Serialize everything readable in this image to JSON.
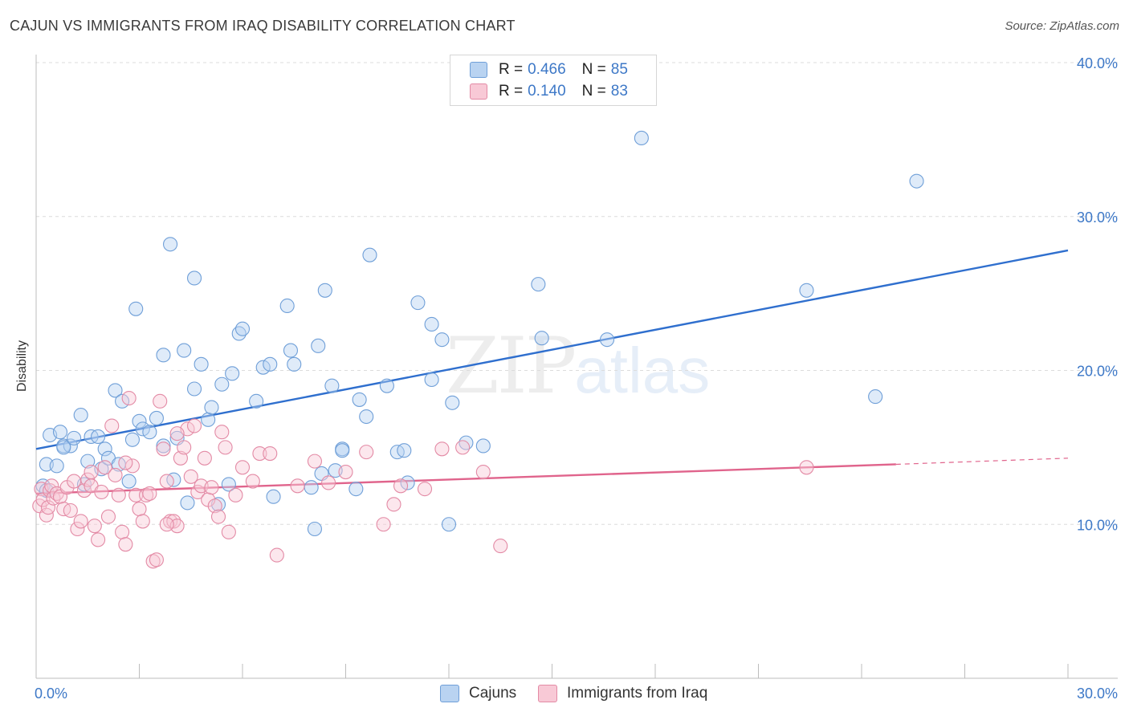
{
  "header": {
    "title": "CAJUN VS IMMIGRANTS FROM IRAQ DISABILITY CORRELATION CHART",
    "source": "Source: ZipAtlas.com"
  },
  "watermark": {
    "zip": "ZIP",
    "atlas": "atlas"
  },
  "legend": {
    "rows": [
      {
        "r_label": "R =",
        "r_value": "0.466",
        "n_label": "N =",
        "n_value": "85",
        "color": "#6f9fd8"
      },
      {
        "r_label": "R =",
        "r_value": "0.140",
        "n_label": "N =",
        "n_value": "83",
        "color": "#e38aa5"
      }
    ]
  },
  "bottom_legend": {
    "series1": "Cajuns",
    "series2": "Immigrants from Iraq"
  },
  "chart_data": {
    "type": "scatter",
    "title": "CAJUN VS IMMIGRANTS FROM IRAQ DISABILITY CORRELATION CHART",
    "xlabel": "",
    "ylabel": "Disability",
    "xlim": [
      0,
      30
    ],
    "ylim": [
      0,
      40
    ],
    "x_tick_labels": [
      "0.0%",
      "30.0%"
    ],
    "y_ticks": [
      10,
      20,
      30,
      40
    ],
    "y_tick_labels": [
      "10.0%",
      "20.0%",
      "30.0%",
      "40.0%"
    ],
    "grid": true,
    "series": [
      {
        "name": "Cajuns",
        "color": "#6f9fd8",
        "trend": {
          "x0": 0,
          "y0": 14.9,
          "x1": 30,
          "y1": 27.8
        },
        "points": [
          [
            0.2,
            12.5
          ],
          [
            0.3,
            12.2
          ],
          [
            0.3,
            13.9
          ],
          [
            0.4,
            15.8
          ],
          [
            0.6,
            13.8
          ],
          [
            0.7,
            16.0
          ],
          [
            0.8,
            15.1
          ],
          [
            1.0,
            15.1
          ],
          [
            1.1,
            15.6
          ],
          [
            1.3,
            17.1
          ],
          [
            1.4,
            12.6
          ],
          [
            1.5,
            14.1
          ],
          [
            1.6,
            15.7
          ],
          [
            1.8,
            15.7
          ],
          [
            1.9,
            13.6
          ],
          [
            2.0,
            14.9
          ],
          [
            2.1,
            14.3
          ],
          [
            2.3,
            18.7
          ],
          [
            2.4,
            13.9
          ],
          [
            2.5,
            18.0
          ],
          [
            2.7,
            12.8
          ],
          [
            2.8,
            15.5
          ],
          [
            2.9,
            24.0
          ],
          [
            3.0,
            16.7
          ],
          [
            3.1,
            16.2
          ],
          [
            3.3,
            16.0
          ],
          [
            3.5,
            16.9
          ],
          [
            3.7,
            21.0
          ],
          [
            3.7,
            15.1
          ],
          [
            3.9,
            28.2
          ],
          [
            4.0,
            12.9
          ],
          [
            4.1,
            15.6
          ],
          [
            4.3,
            21.3
          ],
          [
            4.4,
            11.4
          ],
          [
            4.6,
            18.8
          ],
          [
            4.6,
            26.0
          ],
          [
            4.8,
            20.4
          ],
          [
            5.0,
            16.8
          ],
          [
            5.1,
            17.6
          ],
          [
            5.3,
            11.3
          ],
          [
            5.4,
            19.1
          ],
          [
            5.6,
            12.6
          ],
          [
            5.7,
            19.8
          ],
          [
            5.9,
            22.4
          ],
          [
            6.0,
            22.7
          ],
          [
            6.4,
            18.0
          ],
          [
            6.6,
            20.2
          ],
          [
            6.8,
            20.4
          ],
          [
            6.9,
            11.8
          ],
          [
            7.3,
            24.2
          ],
          [
            7.4,
            21.3
          ],
          [
            7.5,
            20.4
          ],
          [
            8.0,
            12.4
          ],
          [
            8.1,
            9.7
          ],
          [
            8.2,
            21.6
          ],
          [
            8.3,
            13.3
          ],
          [
            8.4,
            25.2
          ],
          [
            8.6,
            19.0
          ],
          [
            8.7,
            13.5
          ],
          [
            8.9,
            14.9
          ],
          [
            8.9,
            14.8
          ],
          [
            9.3,
            12.3
          ],
          [
            9.4,
            18.1
          ],
          [
            9.6,
            17.0
          ],
          [
            9.7,
            27.5
          ],
          [
            10.2,
            19.0
          ],
          [
            10.5,
            14.7
          ],
          [
            10.7,
            14.8
          ],
          [
            10.8,
            12.7
          ],
          [
            11.1,
            24.4
          ],
          [
            11.5,
            19.4
          ],
          [
            11.5,
            23.0
          ],
          [
            11.8,
            22.0
          ],
          [
            12.0,
            10.0
          ],
          [
            12.1,
            17.9
          ],
          [
            12.5,
            15.3
          ],
          [
            13.0,
            15.1
          ],
          [
            14.6,
            25.6
          ],
          [
            14.7,
            22.1
          ],
          [
            16.6,
            22.0
          ],
          [
            17.6,
            35.1
          ],
          [
            22.4,
            25.2
          ],
          [
            24.4,
            18.3
          ],
          [
            25.6,
            32.3
          ],
          [
            0.8,
            15.0
          ]
        ]
      },
      {
        "name": "Immigrants from Iraq",
        "color": "#e38aa5",
        "trend": {
          "x0": 0,
          "y0": 12.0,
          "x1": 25.0,
          "y1": 13.9,
          "x1_dash": 30,
          "y1_dash": 14.3
        },
        "points": [
          [
            0.1,
            11.2
          ],
          [
            0.15,
            12.3
          ],
          [
            0.2,
            11.6
          ],
          [
            0.3,
            10.6
          ],
          [
            0.35,
            11.1
          ],
          [
            0.4,
            12.2
          ],
          [
            0.45,
            12.5
          ],
          [
            0.5,
            11.7
          ],
          [
            0.6,
            12.0
          ],
          [
            0.7,
            11.8
          ],
          [
            0.8,
            11.0
          ],
          [
            0.9,
            12.4
          ],
          [
            1.0,
            10.9
          ],
          [
            1.1,
            12.8
          ],
          [
            1.2,
            9.7
          ],
          [
            1.3,
            10.2
          ],
          [
            1.4,
            12.2
          ],
          [
            1.5,
            12.9
          ],
          [
            1.6,
            12.5
          ],
          [
            1.7,
            9.9
          ],
          [
            1.8,
            9.0
          ],
          [
            1.9,
            12.1
          ],
          [
            2.0,
            13.7
          ],
          [
            2.1,
            10.5
          ],
          [
            2.2,
            16.4
          ],
          [
            2.3,
            13.2
          ],
          [
            2.4,
            11.9
          ],
          [
            2.5,
            9.5
          ],
          [
            2.6,
            8.7
          ],
          [
            2.7,
            18.2
          ],
          [
            2.8,
            13.8
          ],
          [
            2.9,
            11.9
          ],
          [
            3.0,
            11.0
          ],
          [
            3.1,
            10.2
          ],
          [
            3.2,
            11.9
          ],
          [
            3.3,
            12.0
          ],
          [
            3.4,
            7.6
          ],
          [
            3.5,
            7.7
          ],
          [
            3.6,
            18.0
          ],
          [
            3.7,
            14.9
          ],
          [
            3.8,
            12.8
          ],
          [
            3.9,
            10.2
          ],
          [
            4.0,
            10.2
          ],
          [
            4.1,
            9.9
          ],
          [
            4.2,
            14.3
          ],
          [
            4.3,
            15.0
          ],
          [
            4.4,
            16.2
          ],
          [
            4.5,
            13.1
          ],
          [
            4.6,
            16.4
          ],
          [
            4.7,
            12.1
          ],
          [
            4.8,
            12.5
          ],
          [
            4.9,
            14.3
          ],
          [
            5.0,
            11.6
          ],
          [
            5.1,
            12.4
          ],
          [
            5.2,
            11.2
          ],
          [
            5.3,
            10.5
          ],
          [
            5.4,
            16.0
          ],
          [
            5.5,
            15.0
          ],
          [
            5.6,
            9.5
          ],
          [
            5.8,
            11.9
          ],
          [
            6.0,
            13.7
          ],
          [
            6.3,
            12.8
          ],
          [
            6.5,
            14.6
          ],
          [
            6.8,
            14.6
          ],
          [
            7.0,
            8.0
          ],
          [
            7.6,
            12.5
          ],
          [
            8.1,
            14.1
          ],
          [
            8.5,
            12.7
          ],
          [
            9.0,
            13.4
          ],
          [
            9.6,
            14.7
          ],
          [
            10.1,
            10.0
          ],
          [
            10.4,
            11.3
          ],
          [
            10.6,
            12.5
          ],
          [
            11.3,
            12.3
          ],
          [
            11.8,
            14.9
          ],
          [
            12.4,
            15.0
          ],
          [
            13.0,
            13.4
          ],
          [
            13.5,
            8.6
          ],
          [
            22.4,
            13.7
          ],
          [
            1.6,
            13.4
          ],
          [
            2.6,
            14.0
          ],
          [
            4.1,
            15.9
          ],
          [
            3.8,
            10.0
          ]
        ]
      }
    ]
  }
}
